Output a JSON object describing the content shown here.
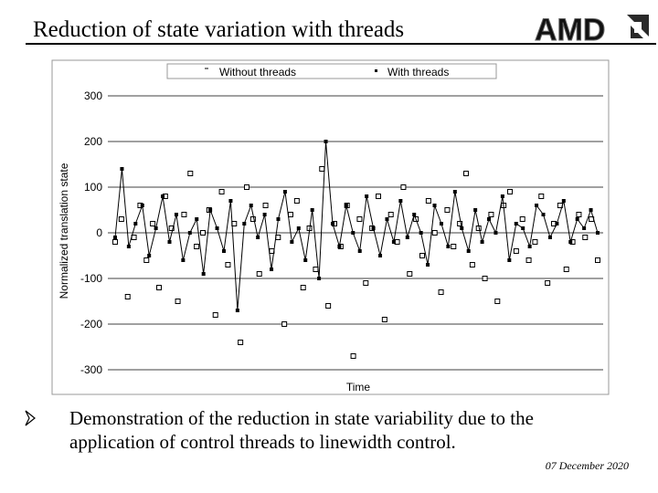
{
  "slide": {
    "title": "Reduction of state variation with threads",
    "logo": "AMD",
    "bullet_lines": [
      "Demonstration of the reduction in state variability due to the",
      "application of control threads to linewidth control."
    ],
    "date": "07 December 2020"
  },
  "chart_data": {
    "type": "line",
    "y_label": "Normalized translation state",
    "x_label": "Time",
    "ylim": [
      -320,
      320
    ],
    "yticks": [
      -300,
      -200,
      -100,
      0,
      100,
      200,
      300
    ],
    "grid": true,
    "legend": "top",
    "series": [
      {
        "name": "Without threads",
        "color": "#000000",
        "marker": "open-square",
        "line": false,
        "values": [
          -20,
          30,
          -140,
          -10,
          60,
          -60,
          20,
          -120,
          80,
          10,
          -150,
          40,
          130,
          -30,
          0,
          50,
          -180,
          90,
          -70,
          20,
          -240,
          100,
          30,
          -90,
          60,
          -40,
          -10,
          -200,
          40,
          70,
          -120,
          10,
          -80,
          140,
          -160,
          20,
          -30,
          60,
          -270,
          30,
          -110,
          10,
          80,
          -190,
          40,
          -20,
          100,
          -90,
          30,
          -50,
          70,
          0,
          -130,
          50,
          -30,
          20,
          130,
          -70,
          10,
          -100,
          40,
          -150,
          60,
          90,
          -40,
          30,
          -60,
          -20,
          80,
          -110,
          20,
          60,
          -80,
          -20,
          40,
          -10,
          30,
          -60
        ]
      },
      {
        "name": "With threads",
        "color": "#000000",
        "marker": "filled-square",
        "line": true,
        "values": [
          -10,
          140,
          -30,
          20,
          60,
          -50,
          10,
          80,
          -20,
          40,
          -60,
          0,
          30,
          -90,
          50,
          10,
          -40,
          70,
          -170,
          20,
          60,
          -10,
          40,
          -80,
          30,
          90,
          -20,
          10,
          -60,
          50,
          -100,
          200,
          20,
          -30,
          60,
          0,
          -40,
          80,
          10,
          -50,
          30,
          -20,
          70,
          -10,
          40,
          0,
          -70,
          60,
          20,
          -30,
          90,
          10,
          -40,
          50,
          -20,
          30,
          0,
          80,
          -60,
          20,
          10,
          -30,
          60,
          40,
          -10,
          20,
          70,
          -20,
          30,
          10,
          50,
          0
        ]
      }
    ]
  }
}
